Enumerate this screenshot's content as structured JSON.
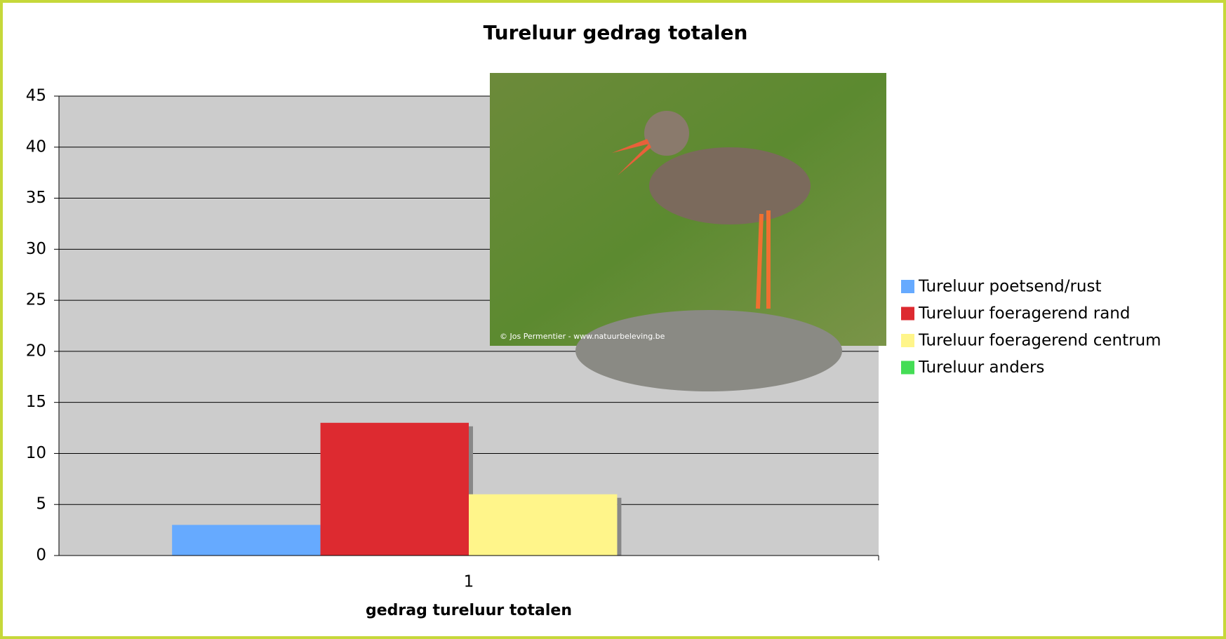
{
  "chart_data": {
    "type": "bar",
    "title": "Tureluur gedrag totalen",
    "x_label": "gedrag tureluur totalen",
    "categories": [
      "1"
    ],
    "series": [
      {
        "name": "Tureluur poetsend/rust",
        "color": "#66aaff",
        "values": [
          3
        ]
      },
      {
        "name": "Tureluur foeragerend rand",
        "color": "#dd2a30",
        "values": [
          13
        ]
      },
      {
        "name": "Tureluur foeragerend centrum",
        "color": "#fff58a",
        "values": [
          6
        ]
      },
      {
        "name": "Tureluur anders",
        "color": "#44dd55",
        "values": [
          0
        ]
      }
    ],
    "ylim": [
      0,
      45
    ],
    "yticks": [
      0,
      5,
      10,
      15,
      20,
      25,
      30,
      35,
      40,
      45
    ],
    "grid": true,
    "legend": "right",
    "image_credit": "© Jos Permentier - www.natuurbeleving.be"
  }
}
